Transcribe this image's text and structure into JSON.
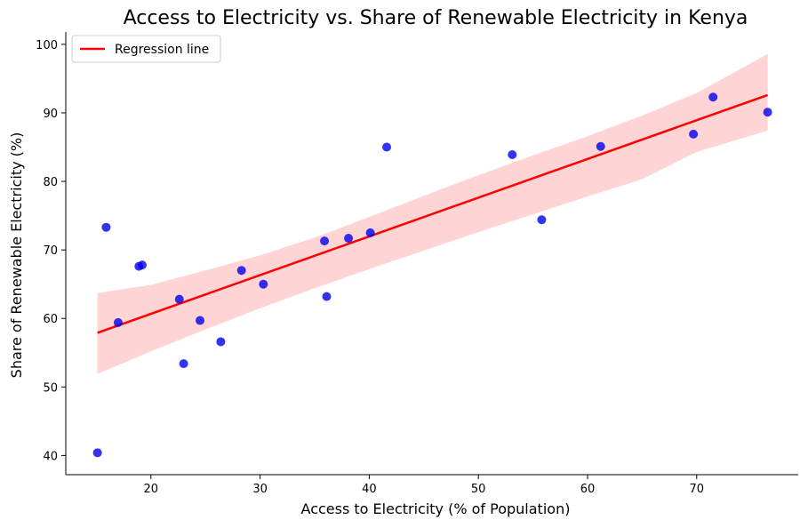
{
  "chart_data": {
    "type": "scatter",
    "title": "Access to Electricity vs. Share of Renewable Electricity in Kenya",
    "xlabel": "Access to Electricity (% of Population)",
    "ylabel": "Share of Renewable Electricity (%)",
    "xlim": [
      12.2,
      79.3
    ],
    "ylim": [
      37.2,
      101.8
    ],
    "xticks": [
      20,
      30,
      40,
      50,
      60,
      70
    ],
    "yticks": [
      40,
      50,
      60,
      70,
      80,
      90,
      100
    ],
    "grid": false,
    "legend_position": "upper-left",
    "series": [
      {
        "name": "",
        "kind": "scatter",
        "color": "#0000ee",
        "points": [
          {
            "x": 15.1,
            "y": 40.4
          },
          {
            "x": 15.9,
            "y": 73.3
          },
          {
            "x": 17.0,
            "y": 59.4
          },
          {
            "x": 18.9,
            "y": 67.6
          },
          {
            "x": 19.2,
            "y": 67.8
          },
          {
            "x": 22.6,
            "y": 62.8
          },
          {
            "x": 23.0,
            "y": 53.4
          },
          {
            "x": 24.5,
            "y": 59.7
          },
          {
            "x": 26.4,
            "y": 56.6
          },
          {
            "x": 28.3,
            "y": 67.0
          },
          {
            "x": 30.3,
            "y": 65.0
          },
          {
            "x": 35.9,
            "y": 71.3
          },
          {
            "x": 36.1,
            "y": 63.2
          },
          {
            "x": 38.1,
            "y": 71.7
          },
          {
            "x": 40.1,
            "y": 72.5
          },
          {
            "x": 41.6,
            "y": 85.0
          },
          {
            "x": 53.1,
            "y": 83.9
          },
          {
            "x": 55.8,
            "y": 74.4
          },
          {
            "x": 61.2,
            "y": 85.1
          },
          {
            "x": 69.7,
            "y": 86.9
          },
          {
            "x": 71.5,
            "y": 92.3
          },
          {
            "x": 76.5,
            "y": 90.1
          }
        ]
      },
      {
        "name": "Regression line",
        "kind": "line",
        "color": "#ff0000",
        "x": [
          15.1,
          76.5
        ],
        "y": [
          57.9,
          92.6
        ]
      },
      {
        "name": "",
        "kind": "confidence-band",
        "color": "#ffcccc",
        "x": [
          15.1,
          20,
          25,
          30,
          35,
          40,
          45,
          50,
          55,
          60,
          65,
          70,
          76.5
        ],
        "upper": [
          63.7,
          64.9,
          67.0,
          69.2,
          71.8,
          74.8,
          77.9,
          80.9,
          83.8,
          86.6,
          89.6,
          92.9,
          98.6
        ],
        "lower": [
          51.9,
          55.2,
          58.4,
          61.5,
          64.4,
          67.2,
          69.9,
          72.6,
          75.2,
          77.8,
          80.3,
          84.3,
          87.4
        ]
      }
    ]
  }
}
